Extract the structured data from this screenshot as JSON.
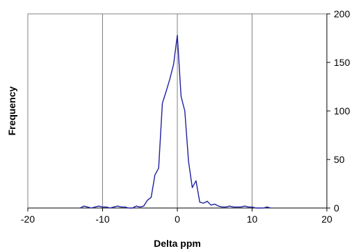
{
  "chart_data": {
    "type": "line",
    "title": "",
    "xlabel": "Delta ppm",
    "ylabel": "Frequency",
    "xlim": [
      -20,
      20
    ],
    "ylim": [
      0,
      200
    ],
    "x_ticks": [
      -20,
      -10,
      0,
      10,
      20
    ],
    "y_ticks": [
      0,
      50,
      100,
      150,
      200
    ],
    "x_tick_labels": [
      "-20",
      "-10",
      "0",
      "10",
      "20"
    ],
    "y_tick_labels": [
      "0",
      "50",
      "100",
      "150",
      "200"
    ],
    "y_axis_side": "right",
    "gridlines": "vertical",
    "legend": "none",
    "line_color": "#1f1fa0",
    "series": [
      {
        "x": [
          -13,
          -12.5,
          -12,
          -11.5,
          -11,
          -10.5,
          -10,
          -9.5,
          -9,
          -8.5,
          -8,
          -7.5,
          -7,
          -6.5,
          -6,
          -5.5,
          -5,
          -4.5,
          -4,
          -3.5,
          -3,
          -2.5,
          -2,
          -1.5,
          -1,
          -0.5,
          0,
          0.5,
          1,
          1.5,
          2,
          2.5,
          3,
          3.5,
          4,
          4.5,
          5,
          5.5,
          6,
          6.5,
          7,
          7.5,
          8,
          8.5,
          9,
          9.5,
          10,
          10.5,
          11,
          11.5,
          12,
          12.5
        ],
        "y": [
          0,
          2,
          1,
          0,
          1,
          2,
          1,
          1,
          0,
          1,
          2,
          1,
          1,
          0,
          0,
          2,
          1,
          2,
          8,
          11,
          34,
          41,
          108,
          120,
          133,
          148,
          178,
          115,
          100,
          48,
          21,
          28,
          6,
          5,
          7,
          3,
          4,
          2,
          1,
          1,
          2,
          1,
          1,
          1,
          2,
          1,
          1,
          0,
          0,
          0,
          1,
          0
        ]
      }
    ]
  }
}
